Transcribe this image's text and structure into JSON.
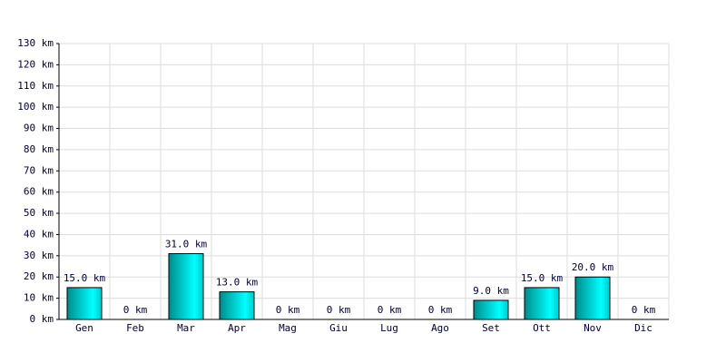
{
  "chart_data": {
    "type": "bar",
    "categories": [
      "Gen",
      "Feb",
      "Mar",
      "Apr",
      "Mag",
      "Giu",
      "Lug",
      "Ago",
      "Set",
      "Ott",
      "Nov",
      "Dic"
    ],
    "values": [
      15,
      0,
      31,
      13,
      0,
      0,
      0,
      0,
      9,
      15,
      20,
      0
    ],
    "value_labels": [
      "15.0 km",
      "0 km",
      "31.0 km",
      "13.0 km",
      "0 km",
      "0 km",
      "0 km",
      "0 km",
      "9.0 km",
      "15.0 km",
      "20.0 km",
      "0 km"
    ],
    "color": "#00ffff",
    "ylim": [
      0,
      130
    ],
    "yticks": [
      {
        "value": 0,
        "label": "0 km"
      },
      {
        "value": 10,
        "label": "10 km"
      },
      {
        "value": 20,
        "label": "20 km"
      },
      {
        "value": 30,
        "label": "30 km"
      },
      {
        "value": 40,
        "label": "40 km"
      },
      {
        "value": 50,
        "label": "50 km"
      },
      {
        "value": 60,
        "label": "60 km"
      },
      {
        "value": 70,
        "label": "70 km"
      },
      {
        "value": 80,
        "label": "80 km"
      },
      {
        "value": 90,
        "label": "90 km"
      },
      {
        "value": 100,
        "label": "100 km"
      },
      {
        "value": 110,
        "label": "110 km"
      },
      {
        "value": 120,
        "label": "120 km"
      },
      {
        "value": 130,
        "label": "130 km"
      }
    ],
    "grid": true
  }
}
